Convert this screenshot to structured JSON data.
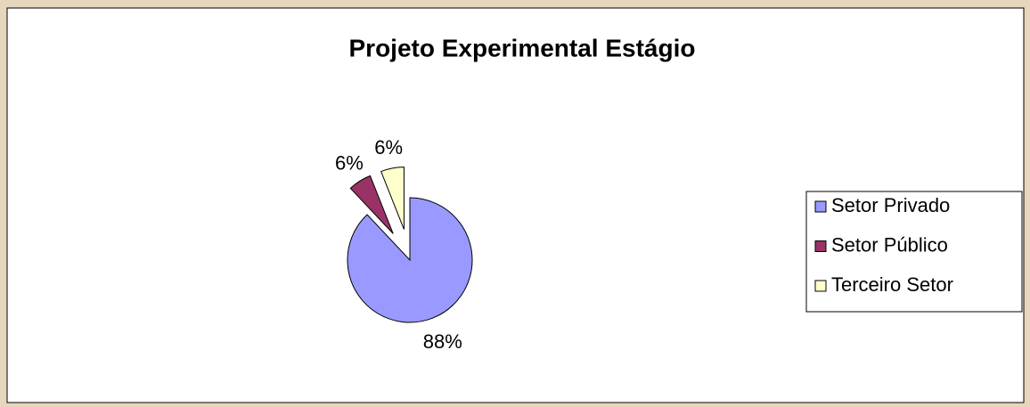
{
  "chart_data": {
    "type": "pie",
    "title": "Projeto Experimental Estágio",
    "categories": [
      "Setor Privado",
      "Setor Público",
      "Terceiro Setor"
    ],
    "values": [
      88,
      6,
      6
    ],
    "value_labels": [
      "88%",
      "6%",
      "6%"
    ],
    "colors": [
      "#9999ff",
      "#993366",
      "#ffffcc"
    ],
    "legend": "right"
  }
}
